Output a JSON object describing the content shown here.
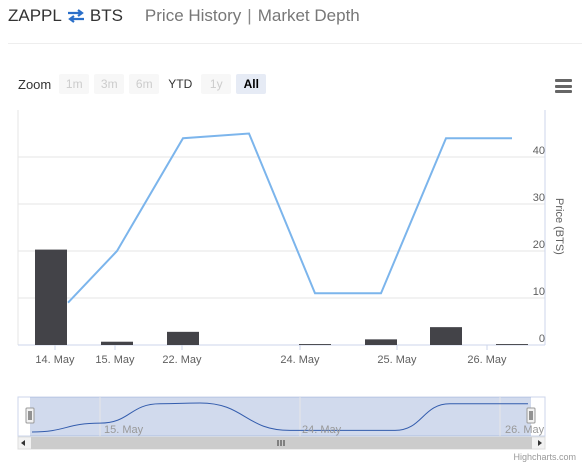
{
  "header": {
    "base_symbol": "ZAPPL",
    "quote_symbol": "BTS",
    "tabs": [
      {
        "label": "Price History"
      },
      {
        "label": "Market Depth"
      }
    ],
    "separator": "|"
  },
  "zoom": {
    "label": "Zoom",
    "buttons": [
      {
        "label": "1m",
        "state": "disabled"
      },
      {
        "label": "3m",
        "state": "disabled"
      },
      {
        "label": "6m",
        "state": "disabled"
      },
      {
        "label": "YTD",
        "state": "enabled"
      },
      {
        "label": "1y",
        "state": "disabled"
      },
      {
        "label": "All",
        "state": "selected"
      }
    ]
  },
  "credit": "Highcharts.com",
  "chart_data": {
    "type": "line",
    "x_ticks": [
      "14. May",
      "15. May",
      "22. May",
      "24. May",
      "25. May",
      "26. May"
    ],
    "y_axis": {
      "title": "Price (BTS)",
      "ticks": [
        0,
        10,
        20,
        30,
        40
      ],
      "range": [
        0,
        50
      ],
      "side": "right"
    },
    "series": [
      {
        "type": "line",
        "color": "#7cb5ec",
        "values": [
          9,
          20,
          44,
          45,
          11,
          11,
          44,
          44
        ]
      },
      {
        "type": "bar",
        "color": "#434348",
        "values": [
          20.3,
          0.7,
          2.8,
          0.2,
          1.2,
          3.8,
          0.2
        ]
      }
    ],
    "navigator": {
      "labels": [
        "15. May",
        "24. May",
        "26. May"
      ]
    },
    "grid": true,
    "legend": "none"
  }
}
